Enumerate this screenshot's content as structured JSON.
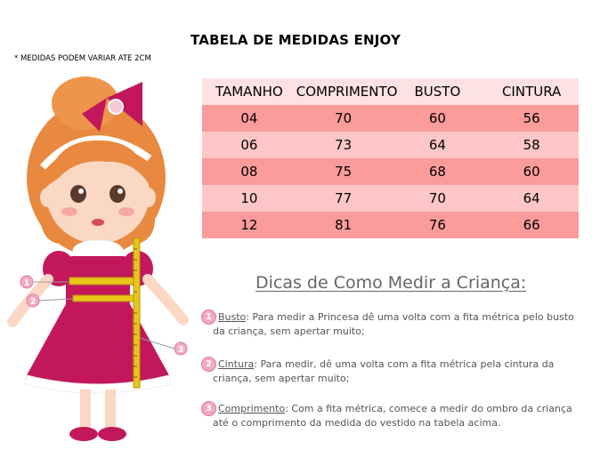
{
  "title": "TABELA DE MEDIDAS ENJOY",
  "note": "* MEDIDAS PODEM VARIAR ATE 2CM",
  "table": {
    "headers": [
      "TAMANHO",
      "COMPRIMENTO",
      "BUSTO",
      "CINTURA"
    ],
    "rows": [
      [
        "04",
        "70",
        "60",
        "56"
      ],
      [
        "06",
        "73",
        "64",
        "58"
      ],
      [
        "08",
        "75",
        "68",
        "60"
      ],
      [
        "10",
        "77",
        "70",
        "64"
      ],
      [
        "12",
        "81",
        "76",
        "66"
      ]
    ],
    "colors": {
      "header": "#fde1e3",
      "dark_row": "#fb9b9b",
      "light_row": "#fec6c6"
    }
  },
  "tips": {
    "title": "Dicas de Como Medir a Criança:",
    "items": [
      {
        "number": "1",
        "term": "Busto",
        "line1": ": Para medir a Princesa dê uma volta com a fita métrica pelo busto",
        "line2": "da criança, sem apertar muito;"
      },
      {
        "number": "2",
        "term": "Cintura",
        "line1": ": Para medir, dê uma volta com a fita métrica pela cintura da",
        "line2": "criança, sem apertar muito;"
      },
      {
        "number": "3",
        "term": "Comprimento",
        "line1": ": Com a fita métrica, comece a medir do ombro da criança",
        "line2": "até o comprimento da medida do vestido na tabela acima."
      }
    ]
  },
  "illustration": {
    "markers": [
      "1",
      "2",
      "3"
    ],
    "colors": {
      "dress": "#c2185b",
      "hair": "#e8893f",
      "skin": "#fbd8c4",
      "tape": "#e8c51a"
    }
  }
}
